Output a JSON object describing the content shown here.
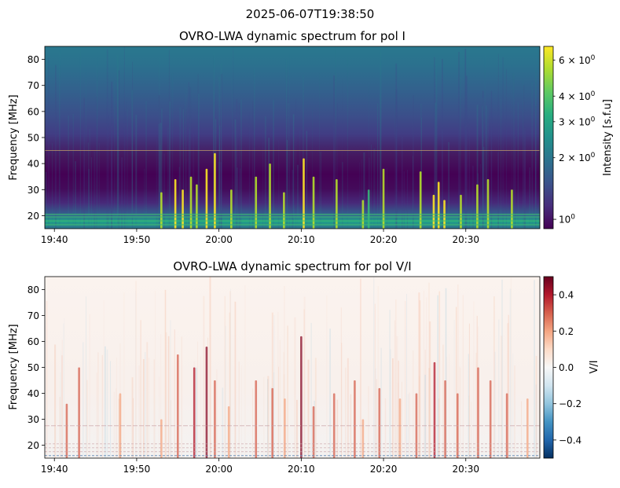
{
  "figure": {
    "suptitle": "2025-06-07T19:38:50"
  },
  "chart_data": [
    {
      "type": "heatmap",
      "title": "OVRO-LWA dynamic spectrum for pol I",
      "xlabel": "",
      "ylabel": "Frequency [MHz]",
      "xlim": [
        "19:38:50",
        "20:39:00"
      ],
      "ylim": [
        15,
        85
      ],
      "x_ticks": [
        "19:40",
        "19:50",
        "20:00",
        "20:10",
        "20:20",
        "20:30"
      ],
      "x_tick_minutes": [
        40,
        50,
        60,
        70,
        80,
        90
      ],
      "y_ticks": [
        20,
        30,
        40,
        50,
        60,
        70,
        80
      ],
      "colormap": "viridis",
      "scale": "log",
      "colorbar": {
        "label": "Intensity [s.f.u]",
        "range": [
          0.9,
          7.0
        ],
        "major_ticks": [
          {
            "value": 1,
            "base": "10",
            "exp": "0",
            "mult": ""
          }
        ],
        "minor_ticks": [
          {
            "value": 2,
            "base": "10",
            "exp": "0",
            "mult": "2 × "
          },
          {
            "value": 3,
            "base": "10",
            "exp": "0",
            "mult": "3 × "
          },
          {
            "value": 4,
            "base": "10",
            "exp": "0",
            "mult": "4 × "
          },
          {
            "value": 6,
            "base": "10",
            "exp": "0",
            "mult": "6 × "
          }
        ]
      },
      "reference_line_mhz": 45,
      "bursts": [
        {
          "minute": 53.0,
          "f_low": 15,
          "f_high": 29,
          "intensity": 4.5
        },
        {
          "minute": 54.7,
          "f_low": 15,
          "f_high": 34,
          "intensity": 5.5
        },
        {
          "minute": 55.6,
          "f_low": 15,
          "f_high": 30,
          "intensity": 6.0
        },
        {
          "minute": 56.6,
          "f_low": 15,
          "f_high": 35,
          "intensity": 5.0
        },
        {
          "minute": 57.3,
          "f_low": 15,
          "f_high": 32,
          "intensity": 4.5
        },
        {
          "minute": 58.5,
          "f_low": 15,
          "f_high": 38,
          "intensity": 6.5
        },
        {
          "minute": 59.5,
          "f_low": 15,
          "f_high": 44,
          "intensity": 6.0
        },
        {
          "minute": 61.5,
          "f_low": 15,
          "f_high": 30,
          "intensity": 3.5
        },
        {
          "minute": 64.5,
          "f_low": 15,
          "f_high": 35,
          "intensity": 5.0
        },
        {
          "minute": 66.2,
          "f_low": 15,
          "f_high": 40,
          "intensity": 4.5
        },
        {
          "minute": 67.9,
          "f_low": 15,
          "f_high": 29,
          "intensity": 4.0
        },
        {
          "minute": 70.3,
          "f_low": 15,
          "f_high": 42,
          "intensity": 5.5
        },
        {
          "minute": 71.5,
          "f_low": 15,
          "f_high": 35,
          "intensity": 3.5
        },
        {
          "minute": 74.3,
          "f_low": 15,
          "f_high": 34,
          "intensity": 4.5
        },
        {
          "minute": 77.5,
          "f_low": 15,
          "f_high": 26,
          "intensity": 5.0
        },
        {
          "minute": 78.2,
          "f_low": 15,
          "f_high": 30,
          "intensity": 3.0
        },
        {
          "minute": 80.0,
          "f_low": 15,
          "f_high": 38,
          "intensity": 3.5
        },
        {
          "minute": 84.5,
          "f_low": 15,
          "f_high": 37,
          "intensity": 4.0
        },
        {
          "minute": 86.1,
          "f_low": 15,
          "f_high": 28,
          "intensity": 6.5
        },
        {
          "minute": 86.7,
          "f_low": 15,
          "f_high": 33,
          "intensity": 6.5
        },
        {
          "minute": 87.4,
          "f_low": 15,
          "f_high": 26,
          "intensity": 5.5
        },
        {
          "minute": 89.4,
          "f_low": 15,
          "f_high": 28,
          "intensity": 4.5
        },
        {
          "minute": 91.4,
          "f_low": 15,
          "f_high": 32,
          "intensity": 5.0
        },
        {
          "minute": 92.7,
          "f_low": 15,
          "f_high": 34,
          "intensity": 4.0
        },
        {
          "minute": 95.6,
          "f_low": 15,
          "f_high": 30,
          "intensity": 3.5
        }
      ]
    },
    {
      "type": "heatmap",
      "title": "OVRO-LWA dynamic spectrum for pol V/I",
      "xlabel": "",
      "ylabel": "Frequency [MHz]",
      "xlim": [
        "19:38:50",
        "20:39:00"
      ],
      "ylim": [
        15,
        85
      ],
      "x_ticks": [
        "19:40",
        "19:50",
        "20:00",
        "20:10",
        "20:20",
        "20:30"
      ],
      "x_tick_minutes": [
        40,
        50,
        60,
        70,
        80,
        90
      ],
      "y_ticks": [
        20,
        30,
        40,
        50,
        60,
        70,
        80
      ],
      "colormap": "RdBu_r",
      "colorbar": {
        "label": "V/I",
        "range": [
          -0.5,
          0.5
        ],
        "ticks": [
          0.4,
          0.2,
          0.0,
          -0.2,
          -0.4
        ],
        "tick_labels": [
          "0.4",
          "0.2",
          "0.0",
          "−0.2",
          "−0.4"
        ]
      },
      "bursts": [
        {
          "minute": 41.5,
          "f_low": 15,
          "f_high": 36,
          "vi": 0.25
        },
        {
          "minute": 43.0,
          "f_low": 15,
          "f_high": 50,
          "vi": 0.3
        },
        {
          "minute": 48.0,
          "f_low": 15,
          "f_high": 40,
          "vi": 0.18
        },
        {
          "minute": 53.0,
          "f_low": 15,
          "f_high": 30,
          "vi": 0.2
        },
        {
          "minute": 55.0,
          "f_low": 15,
          "f_high": 55,
          "vi": 0.3
        },
        {
          "minute": 57.0,
          "f_low": 15,
          "f_high": 50,
          "vi": 0.35
        },
        {
          "minute": 58.5,
          "f_low": 15,
          "f_high": 58,
          "vi": 0.45
        },
        {
          "minute": 59.5,
          "f_low": 15,
          "f_high": 45,
          "vi": 0.3
        },
        {
          "minute": 61.2,
          "f_low": 15,
          "f_high": 35,
          "vi": 0.15
        },
        {
          "minute": 64.5,
          "f_low": 15,
          "f_high": 45,
          "vi": 0.3
        },
        {
          "minute": 66.5,
          "f_low": 15,
          "f_high": 42,
          "vi": 0.25
        },
        {
          "minute": 68.0,
          "f_low": 15,
          "f_high": 38,
          "vi": 0.2
        },
        {
          "minute": 70.0,
          "f_low": 15,
          "f_high": 62,
          "vi": 0.5
        },
        {
          "minute": 71.5,
          "f_low": 15,
          "f_high": 35,
          "vi": 0.25
        },
        {
          "minute": 74.0,
          "f_low": 15,
          "f_high": 40,
          "vi": 0.3
        },
        {
          "minute": 76.5,
          "f_low": 15,
          "f_high": 45,
          "vi": 0.3
        },
        {
          "minute": 77.5,
          "f_low": 15,
          "f_high": 30,
          "vi": 0.2
        },
        {
          "minute": 79.5,
          "f_low": 15,
          "f_high": 42,
          "vi": 0.25
        },
        {
          "minute": 82.0,
          "f_low": 15,
          "f_high": 38,
          "vi": 0.2
        },
        {
          "minute": 84.0,
          "f_low": 15,
          "f_high": 40,
          "vi": 0.25
        },
        {
          "minute": 86.2,
          "f_low": 15,
          "f_high": 52,
          "vi": 0.35
        },
        {
          "minute": 87.5,
          "f_low": 15,
          "f_high": 45,
          "vi": 0.3
        },
        {
          "minute": 89.0,
          "f_low": 15,
          "f_high": 40,
          "vi": 0.25
        },
        {
          "minute": 91.5,
          "f_low": 15,
          "f_high": 50,
          "vi": 0.3
        },
        {
          "minute": 93.0,
          "f_low": 15,
          "f_high": 45,
          "vi": 0.3
        },
        {
          "minute": 95.0,
          "f_low": 15,
          "f_high": 40,
          "vi": 0.25
        },
        {
          "minute": 97.5,
          "f_low": 15,
          "f_high": 38,
          "vi": 0.2
        }
      ]
    }
  ]
}
